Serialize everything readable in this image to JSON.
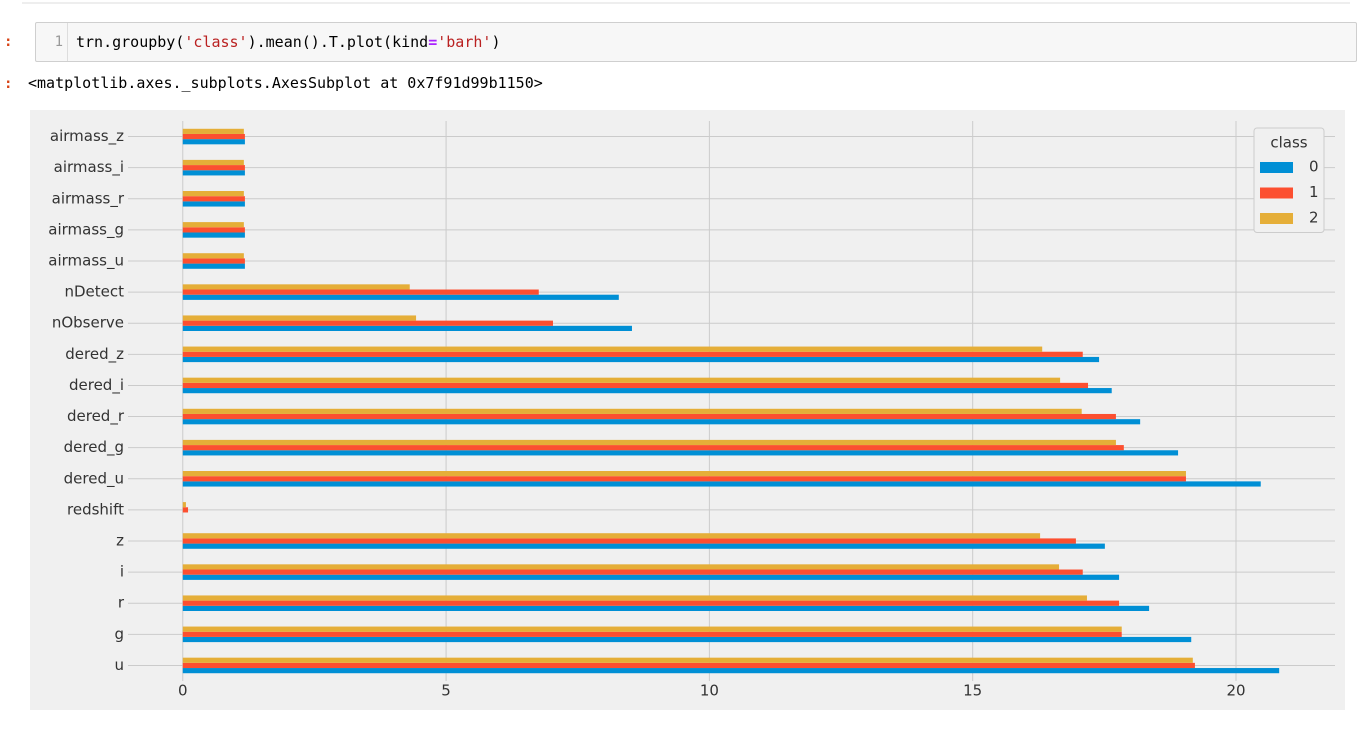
{
  "notebook": {
    "prompt_in": ":",
    "line_number": "1",
    "code_tokens": [
      "trn.groupby(",
      "'class'",
      ").mean().T.plot(kind",
      "=",
      "'barh'",
      ")"
    ],
    "prompt_out": ":",
    "output_text": "<matplotlib.axes._subplots.AxesSubplot at 0x7f91d99b1150>"
  },
  "chart_data": {
    "type": "barh",
    "categories": [
      "u",
      "g",
      "r",
      "i",
      "z",
      "redshift",
      "dered_u",
      "dered_g",
      "dered_r",
      "dered_i",
      "dered_z",
      "nObserve",
      "nDetect",
      "airmass_u",
      "airmass_g",
      "airmass_r",
      "airmass_i",
      "airmass_z"
    ],
    "legend_title": "class",
    "legend_position": "upper right",
    "series": [
      {
        "name": "0",
        "color": "#008fd5",
        "values": [
          20.82,
          19.15,
          18.35,
          17.78,
          17.51,
          0.0,
          20.47,
          18.9,
          18.18,
          17.64,
          17.4,
          8.53,
          8.28,
          1.18,
          1.18,
          1.18,
          1.18,
          1.18
        ]
      },
      {
        "name": "1",
        "color": "#fc4f30",
        "values": [
          19.22,
          17.83,
          17.78,
          17.09,
          16.96,
          0.1,
          19.05,
          17.87,
          17.72,
          17.19,
          17.09,
          7.03,
          6.76,
          1.18,
          1.18,
          1.18,
          1.18,
          1.18
        ]
      },
      {
        "name": "2",
        "color": "#e5ae38",
        "values": [
          19.18,
          17.83,
          17.17,
          16.64,
          16.28,
          0.06,
          19.05,
          17.72,
          17.07,
          16.66,
          16.32,
          4.43,
          4.31,
          1.16,
          1.16,
          1.16,
          1.16,
          1.16
        ]
      }
    ],
    "xlim": [
      -1.04,
      21.88
    ],
    "xticks": [
      0,
      5,
      10,
      15,
      20
    ],
    "grid": true
  }
}
